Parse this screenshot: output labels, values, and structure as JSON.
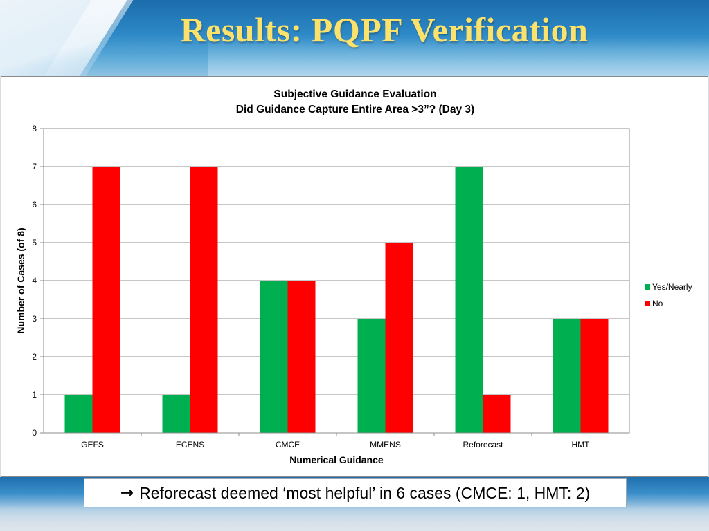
{
  "slide": {
    "title": "Results: PQPF Verification"
  },
  "note": {
    "arrow": "→",
    "text": "Reforecast deemed ‘most helpful’ in 6 cases (CMCE: 1, HMT: 2)"
  },
  "chart_data": {
    "type": "bar",
    "title": "Subjective Guidance Evaluation",
    "subtitle": "Did Guidance Capture Entire Area >3”? (Day 3)",
    "xlabel": "Numerical Guidance",
    "ylabel": "Number of Cases (of 8)",
    "categories": [
      "GEFS",
      "ECENS",
      "CMCE",
      "MMENS",
      "Reforecast",
      "HMT"
    ],
    "series": [
      {
        "name": "Yes/Nearly",
        "color": "#00b050",
        "values": [
          1,
          1,
          4,
          3,
          7,
          3
        ]
      },
      {
        "name": "No",
        "color": "#ff0000",
        "values": [
          7,
          7,
          4,
          5,
          1,
          3
        ]
      }
    ],
    "ylim": [
      0,
      8
    ],
    "yticks": [
      "0",
      "1",
      "2",
      "3",
      "4",
      "5",
      "6",
      "7",
      "8"
    ],
    "grid": true,
    "legend_position": "right"
  }
}
